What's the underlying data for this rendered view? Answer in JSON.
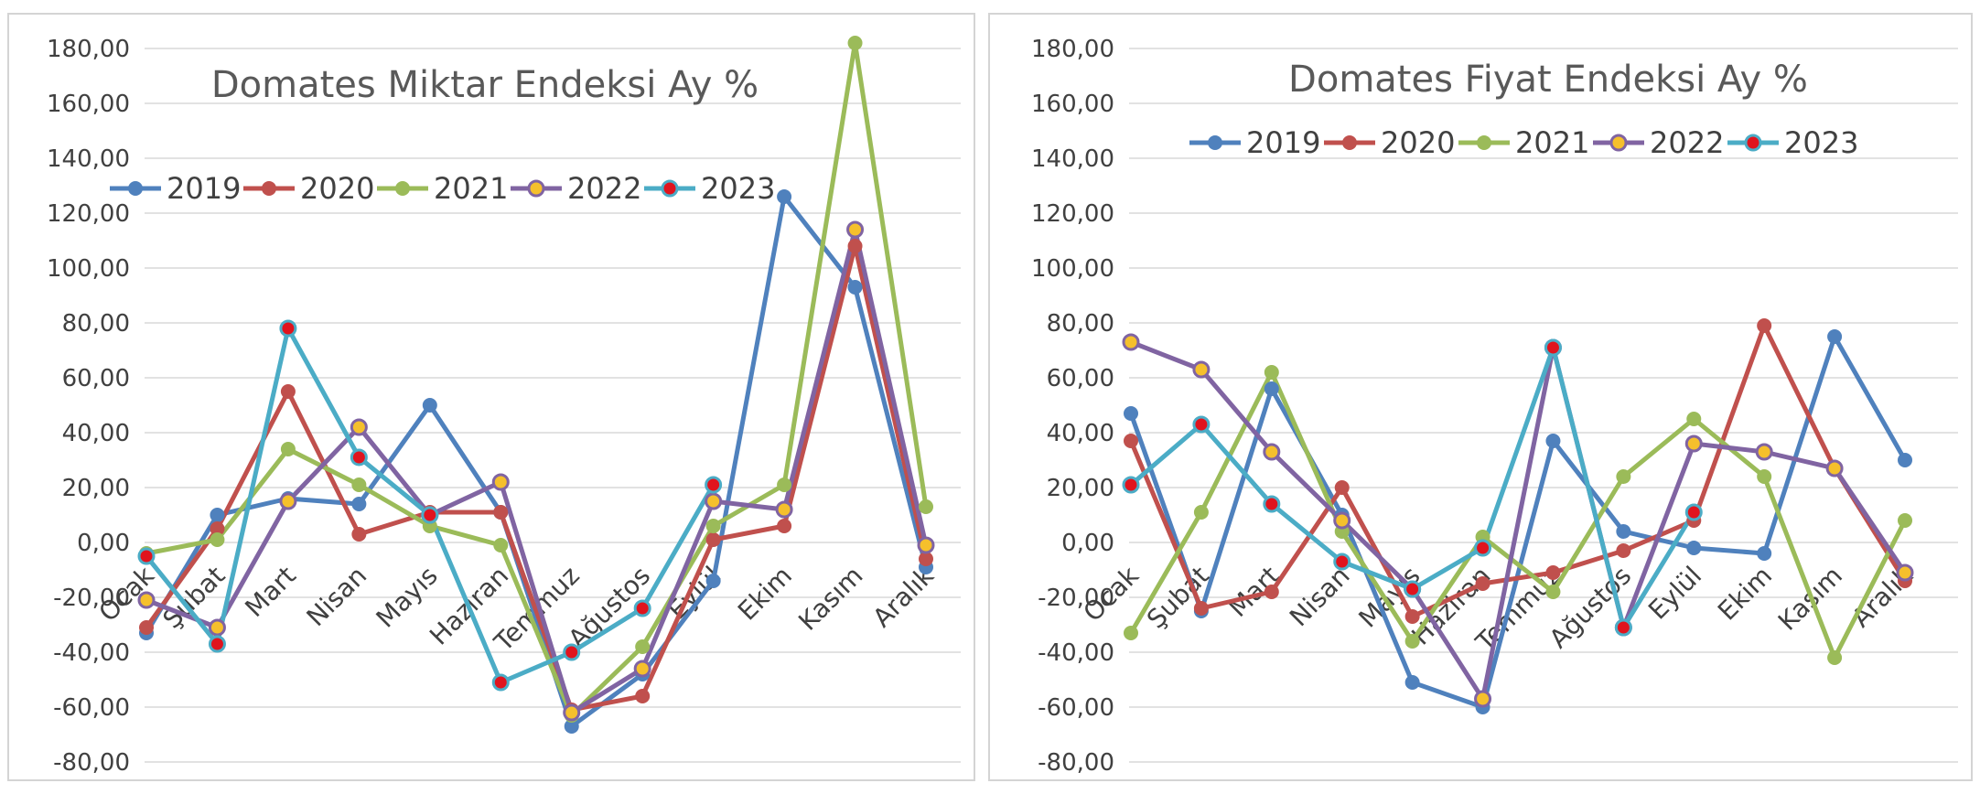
{
  "chart_data": [
    {
      "type": "line",
      "title": "Domates Miktar Endeksi Ay  %",
      "categories": [
        "Ocak",
        "Şubat",
        "Mart",
        "Nisan",
        "Mayıs",
        "Haziran",
        "Temmuz",
        "Ağustos",
        "Eylül",
        "Ekim",
        "Kasım",
        "Aralık"
      ],
      "ylim": [
        -80,
        180
      ],
      "yticks": [
        "180,00",
        "160,00",
        "140,00",
        "120,00",
        "100,00",
        "80,00",
        "60,00",
        "40,00",
        "20,00",
        "0,00",
        "-20,00",
        "-40,00",
        "-60,00",
        "-80,00"
      ],
      "grid": true,
      "legend": "top-left",
      "series": [
        {
          "name": "2019",
          "color": "#4f81bd",
          "values": [
            -33,
            10,
            16,
            14,
            50,
            11,
            -67,
            -48,
            -14,
            126,
            93,
            -9
          ]
        },
        {
          "name": "2020",
          "color": "#c0504d",
          "values": [
            -31,
            5,
            55,
            3,
            11,
            11,
            -61,
            -56,
            1,
            6,
            108,
            -6
          ]
        },
        {
          "name": "2021",
          "color": "#9bbb59",
          "values": [
            -4,
            1,
            34,
            21,
            6,
            -1,
            -63,
            -38,
            6,
            21,
            182,
            13
          ]
        },
        {
          "name": "2022",
          "color": "#8064a2",
          "values": [
            -21,
            -31,
            15,
            42,
            10,
            22,
            -62,
            -46,
            15,
            12,
            114,
            -1
          ]
        },
        {
          "name": "2023",
          "color": "#4bacc6",
          "values": [
            -5,
            -37,
            78,
            31,
            10,
            -51,
            -40,
            -24,
            21,
            null,
            null,
            null
          ]
        }
      ]
    },
    {
      "type": "line",
      "title": "Domates Fiyat Endeksi Ay %",
      "categories": [
        "Ocak",
        "Şubat",
        "Mart",
        "Nisan",
        "Mayıs",
        "Haziran",
        "Temmuz",
        "Ağustos",
        "Eylül",
        "Ekim",
        "Kasım",
        "Aralık"
      ],
      "ylim": [
        -80,
        180
      ],
      "yticks": [
        "180,00",
        "160,00",
        "140,00",
        "120,00",
        "100,00",
        "80,00",
        "60,00",
        "40,00",
        "20,00",
        "0,00",
        "-20,00",
        "-40,00",
        "-60,00",
        "-80,00"
      ],
      "grid": true,
      "legend": "top",
      "series": [
        {
          "name": "2019",
          "color": "#4f81bd",
          "values": [
            47,
            -25,
            56,
            10,
            -51,
            -60,
            37,
            4,
            -2,
            -4,
            75,
            30
          ]
        },
        {
          "name": "2020",
          "color": "#c0504d",
          "values": [
            37,
            -24,
            -18,
            20,
            -27,
            -15,
            -11,
            -3,
            8,
            79,
            27,
            -14
          ]
        },
        {
          "name": "2021",
          "color": "#9bbb59",
          "values": [
            -33,
            11,
            62,
            4,
            -36,
            2,
            -18,
            24,
            45,
            24,
            -42,
            8
          ]
        },
        {
          "name": "2022",
          "color": "#8064a2",
          "values": [
            73,
            63,
            33,
            8,
            -17,
            -57,
            71,
            -31,
            36,
            33,
            27,
            -11
          ]
        },
        {
          "name": "2023",
          "color": "#4bacc6",
          "values": [
            21,
            43,
            14,
            -7,
            -17,
            -2,
            71,
            -31,
            11,
            null,
            null,
            null
          ]
        }
      ]
    }
  ]
}
